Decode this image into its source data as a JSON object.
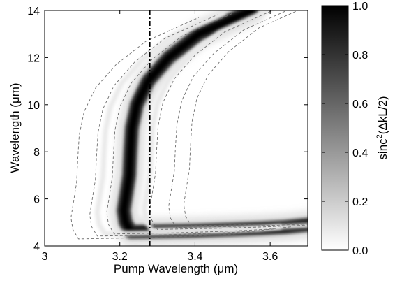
{
  "chart_data": {
    "type": "heatmap",
    "xlabel": "Pump Wavelength (μm)",
    "ylabel": "Wavelength (μm)",
    "xlim": [
      3.0,
      3.7
    ],
    "ylim": [
      4,
      14
    ],
    "x_ticks": [
      "3",
      "3.2",
      "3.4",
      "3.6"
    ],
    "x_tick_values": [
      3.0,
      3.2,
      3.4,
      3.6
    ],
    "y_ticks": [
      "4",
      "6",
      "8",
      "10",
      "12",
      "14"
    ],
    "y_tick_values": [
      4,
      6,
      8,
      10,
      12,
      14
    ],
    "colorbar": {
      "label_main": "sinc",
      "label_sup": "2",
      "label_arg": "(ΔkL/2)",
      "ticks": [
        "0.0",
        "0.2",
        "0.4",
        "0.6",
        "0.8",
        "1.0"
      ],
      "tick_values": [
        0.0,
        0.2,
        0.4,
        0.6,
        0.8,
        1.0
      ],
      "range": [
        0.0,
        1.0
      ],
      "colormap": "white-to-black"
    },
    "vertical_line": {
      "x": 3.28,
      "style": "dash-dot",
      "color": "#000000"
    },
    "phase_matching_ridge": {
      "peak_value": 1.0,
      "y_upper": [
        4.6,
        5.0,
        5.5,
        6.0,
        7.0,
        8.0,
        9.0,
        10.0,
        11.0,
        12.0,
        13.0,
        14.0
      ],
      "x_upper": [
        3.23,
        3.215,
        3.21,
        3.215,
        3.225,
        3.228,
        3.232,
        3.245,
        3.275,
        3.33,
        3.41,
        3.55
      ],
      "y_lower": [
        4.6,
        4.62,
        4.65,
        4.7,
        4.75,
        4.8,
        4.9
      ],
      "x_lower": [
        3.23,
        3.3,
        3.4,
        3.5,
        3.58,
        3.64,
        3.7
      ]
    },
    "contours": {
      "style": "dashed",
      "color": "#6d6d6d",
      "x_offsets": [
        -0.14,
        -0.09,
        -0.045,
        0.07,
        0.12,
        0.16
      ],
      "y_offsets": [
        -0.3,
        -0.18,
        -0.09,
        0.1,
        0.18,
        0.26
      ]
    },
    "grid": false,
    "legend": "none"
  }
}
